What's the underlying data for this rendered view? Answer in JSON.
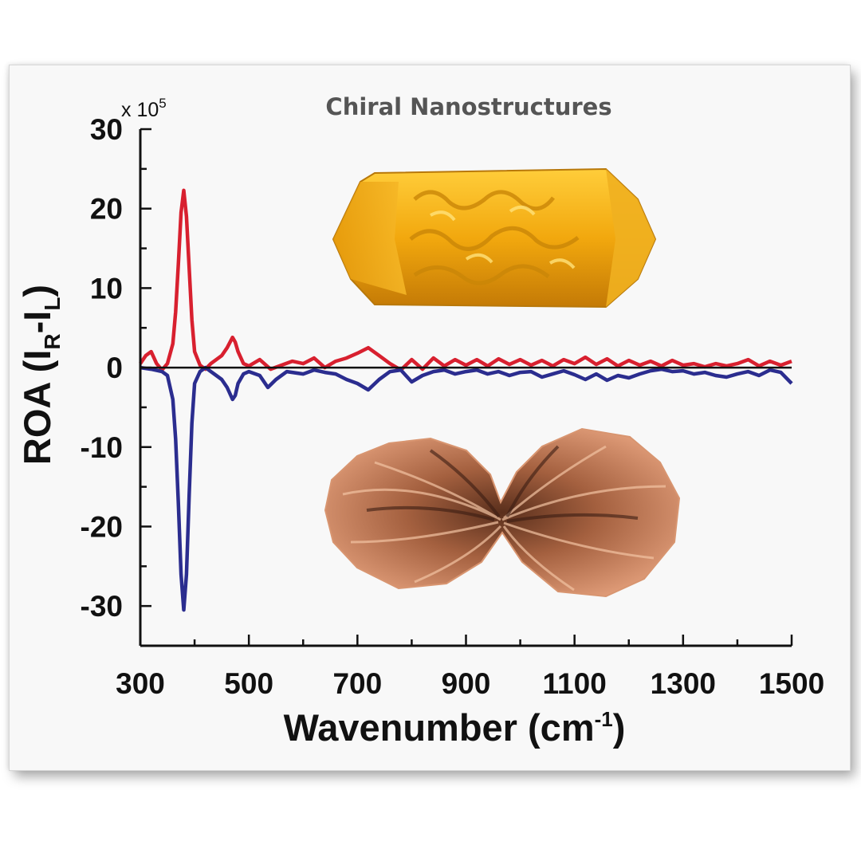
{
  "chart_data": {
    "type": "line",
    "title": "Chiral Nanostructures",
    "xlabel": "Wavenumber (cm",
    "xlabel_sup": "-1",
    "xlabel_end": ")",
    "ylabel": "ROA (I",
    "ylabel_sub_r": "R",
    "ylabel_mid": "-I",
    "ylabel_sub_l": "L",
    "ylabel_end": ")",
    "y_multiplier": "x 10",
    "y_multiplier_exp": "5",
    "xlim": [
      300,
      1500
    ],
    "ylim": [
      -35,
      30
    ],
    "x_ticks": [
      300,
      500,
      700,
      900,
      1100,
      1300,
      1500
    ],
    "y_ticks": [
      30,
      20,
      10,
      0,
      -10,
      -20,
      -30
    ],
    "zero_line": true,
    "grid": false,
    "images": [
      "gold nanocrystal (top)",
      "copper flower-like nanostructure (bottom)"
    ],
    "series": [
      {
        "color": "#d8202f",
        "x": [
          300,
          310,
          320,
          330,
          340,
          350,
          360,
          365,
          370,
          375,
          380,
          385,
          390,
          395,
          400,
          410,
          420,
          430,
          440,
          450,
          460,
          470,
          475,
          480,
          490,
          500,
          520,
          540,
          560,
          580,
          600,
          620,
          640,
          660,
          680,
          700,
          720,
          740,
          760,
          780,
          800,
          820,
          840,
          860,
          880,
          900,
          920,
          940,
          960,
          980,
          1000,
          1020,
          1040,
          1060,
          1080,
          1100,
          1120,
          1140,
          1160,
          1180,
          1200,
          1220,
          1240,
          1260,
          1280,
          1300,
          1320,
          1340,
          1360,
          1380,
          1400,
          1420,
          1440,
          1460,
          1480,
          1500
        ],
        "y": [
          0.5,
          1.5,
          2.0,
          0.5,
          -0.3,
          0.5,
          3.0,
          7.0,
          13.0,
          19.5,
          22.3,
          19.0,
          12.5,
          6.0,
          2.0,
          0.3,
          -0.2,
          0.5,
          1.0,
          1.5,
          2.5,
          3.8,
          3.2,
          2.0,
          0.5,
          0.2,
          1.0,
          -0.2,
          0.3,
          0.8,
          0.5,
          1.2,
          0.0,
          0.8,
          1.2,
          1.8,
          2.5,
          1.5,
          0.5,
          -0.3,
          1.0,
          -0.2,
          1.2,
          0.2,
          1.0,
          0.3,
          1.0,
          0.2,
          1.1,
          0.4,
          1.0,
          0.3,
          0.9,
          0.2,
          1.0,
          0.5,
          1.3,
          0.4,
          1.1,
          0.2,
          0.9,
          0.3,
          0.8,
          0.2,
          0.9,
          0.3,
          0.5,
          0.1,
          0.5,
          0.2,
          0.5,
          1.0,
          0.2,
          0.8,
          0.3,
          0.8
        ]
      },
      {
        "color": "#2b2d8f",
        "x": [
          300,
          320,
          340,
          350,
          360,
          365,
          370,
          375,
          380,
          385,
          390,
          395,
          400,
          410,
          420,
          430,
          440,
          450,
          460,
          470,
          475,
          480,
          490,
          500,
          520,
          535,
          550,
          570,
          600,
          620,
          640,
          660,
          680,
          700,
          720,
          740,
          760,
          780,
          800,
          820,
          840,
          860,
          880,
          900,
          920,
          940,
          960,
          980,
          1000,
          1020,
          1040,
          1060,
          1080,
          1100,
          1120,
          1140,
          1160,
          1180,
          1200,
          1220,
          1240,
          1260,
          1280,
          1300,
          1320,
          1340,
          1360,
          1380,
          1400,
          1420,
          1440,
          1460,
          1480,
          1500
        ],
        "y": [
          0.0,
          -0.2,
          -0.5,
          -1.0,
          -4.0,
          -9.0,
          -17.0,
          -26.0,
          -30.5,
          -26.0,
          -16.0,
          -7.0,
          -2.0,
          -0.5,
          0.0,
          -0.5,
          -1.0,
          -1.5,
          -2.5,
          -4.0,
          -3.5,
          -2.0,
          -0.8,
          -0.5,
          -1.0,
          -2.5,
          -1.5,
          -0.5,
          -0.8,
          -0.3,
          -0.6,
          -0.8,
          -1.5,
          -2.0,
          -2.8,
          -1.5,
          -0.5,
          -0.3,
          -1.8,
          -1.0,
          -0.5,
          -0.3,
          -0.8,
          -0.5,
          -0.3,
          -0.8,
          -0.5,
          -1.0,
          -0.6,
          -0.5,
          -1.2,
          -0.8,
          -0.4,
          -0.9,
          -1.5,
          -0.8,
          -1.6,
          -1.0,
          -1.3,
          -0.8,
          -0.4,
          -0.2,
          -0.5,
          -0.4,
          -0.8,
          -0.6,
          -1.0,
          -1.2,
          -0.8,
          -0.5,
          -1.0,
          -0.3,
          -0.6,
          -2.0
        ]
      }
    ]
  }
}
